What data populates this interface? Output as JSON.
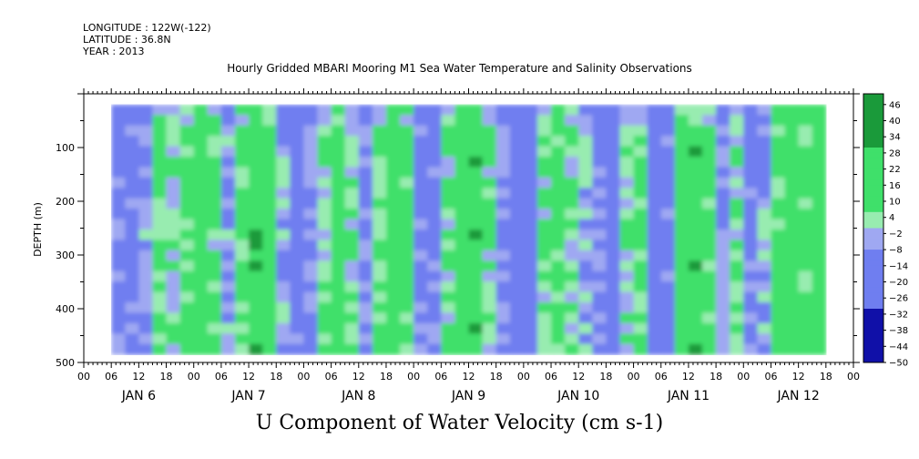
{
  "header": {
    "longitude": "LONGITUDE : 122W(-122)",
    "latitude": "LATITUDE : 36.8N",
    "year": "YEAR : 2013"
  },
  "chart_data": {
    "type": "heatmap",
    "title": "Hourly Gridded MBARI Mooring M1 Sea Water Temperature and Salinity Observations",
    "xlabel": "U Component of Water Velocity (cm s-1)",
    "ylabel": "DEPTH (m)",
    "ylim": [
      500,
      0
    ],
    "y_tick_labels": [
      {
        "value": 100,
        "label": "100"
      },
      {
        "value": 200,
        "label": "200"
      },
      {
        "value": 300,
        "label": "300"
      },
      {
        "value": 400,
        "label": "400"
      },
      {
        "value": 500,
        "label": "500"
      }
    ],
    "x_hour_labels": [
      "00",
      "06",
      "12",
      "18",
      "00",
      "06",
      "12",
      "18",
      "00",
      "06",
      "12",
      "18",
      "00",
      "06",
      "12",
      "18",
      "00",
      "06",
      "12",
      "18",
      "00",
      "06",
      "12",
      "18",
      "00",
      "06",
      "12",
      "18",
      "00"
    ],
    "x_day_labels": [
      "JAN  6",
      "JAN  7",
      "JAN  8",
      "JAN  9",
      "JAN 10",
      "JAN 11",
      "JAN 12"
    ],
    "data_extent": {
      "hour_start": 6,
      "hour_end": 162,
      "depth_top": 20,
      "depth_bottom": 485
    },
    "colorbar_labels": [
      "46",
      "40",
      "34",
      "28",
      "22",
      "16",
      "10",
      "4",
      "-2",
      "-8",
      "-14",
      "-20",
      "-26",
      "-32",
      "-38",
      "-44",
      "-50"
    ],
    "colorbar_range": [
      -50,
      50
    ],
    "colors": {
      "negative": "#6f7ef0",
      "near_zero_neg": "#9fa8f2",
      "near_zero_pos": "#98ecb0",
      "positive": "#3fe06a",
      "strong_positive": "#1a9a3a",
      "strong_negative": "#1010a8"
    },
    "column_profile": [
      {
        "hour": 6,
        "value": -10
      },
      {
        "hour": 9,
        "value": -14
      },
      {
        "hour": 12,
        "value": -6
      },
      {
        "hour": 15,
        "value": 8
      },
      {
        "hour": 18,
        "value": 2
      },
      {
        "hour": 21,
        "value": 12
      },
      {
        "hour": 24,
        "value": 16
      },
      {
        "hour": 27,
        "value": 6
      },
      {
        "hour": 30,
        "value": -6
      },
      {
        "hour": 33,
        "value": 10
      },
      {
        "hour": 36,
        "value": 18
      },
      {
        "hour": 39,
        "value": 14
      },
      {
        "hour": 42,
        "value": -4
      },
      {
        "hour": 45,
        "value": -14
      },
      {
        "hour": 48,
        "value": -8
      },
      {
        "hour": 51,
        "value": 6
      },
      {
        "hour": 54,
        "value": 14
      },
      {
        "hour": 57,
        "value": 2
      },
      {
        "hour": 60,
        "value": -8
      },
      {
        "hour": 63,
        "value": 8
      },
      {
        "hour": 66,
        "value": 16
      },
      {
        "hour": 69,
        "value": 10
      },
      {
        "hour": 72,
        "value": -6
      },
      {
        "hour": 75,
        "value": -12
      },
      {
        "hour": 78,
        "value": 6
      },
      {
        "hour": 81,
        "value": 16
      },
      {
        "hour": 84,
        "value": 18
      },
      {
        "hour": 87,
        "value": 4
      },
      {
        "hour": 90,
        "value": -10
      },
      {
        "hour": 93,
        "value": -16
      },
      {
        "hour": 96,
        "value": -18
      },
      {
        "hour": 99,
        "value": 6
      },
      {
        "hour": 102,
        "value": 12
      },
      {
        "hour": 105,
        "value": 4
      },
      {
        "hour": 108,
        "value": -4
      },
      {
        "hour": 111,
        "value": -10
      },
      {
        "hour": 114,
        "value": -16
      },
      {
        "hour": 117,
        "value": 4
      },
      {
        "hour": 120,
        "value": 8
      },
      {
        "hour": 123,
        "value": -16
      },
      {
        "hour": 126,
        "value": -12
      },
      {
        "hour": 129,
        "value": 14
      },
      {
        "hour": 132,
        "value": 18
      },
      {
        "hour": 135,
        "value": 10
      },
      {
        "hour": 138,
        "value": -8
      },
      {
        "hour": 141,
        "value": 6
      },
      {
        "hour": 144,
        "value": -10
      },
      {
        "hour": 147,
        "value": -4
      },
      {
        "hour": 150,
        "value": 12
      },
      {
        "hour": 153,
        "value": 16
      },
      {
        "hour": 156,
        "value": 10
      },
      {
        "hour": 159,
        "value": 16
      },
      {
        "hour": 162,
        "value": 8
      }
    ]
  }
}
